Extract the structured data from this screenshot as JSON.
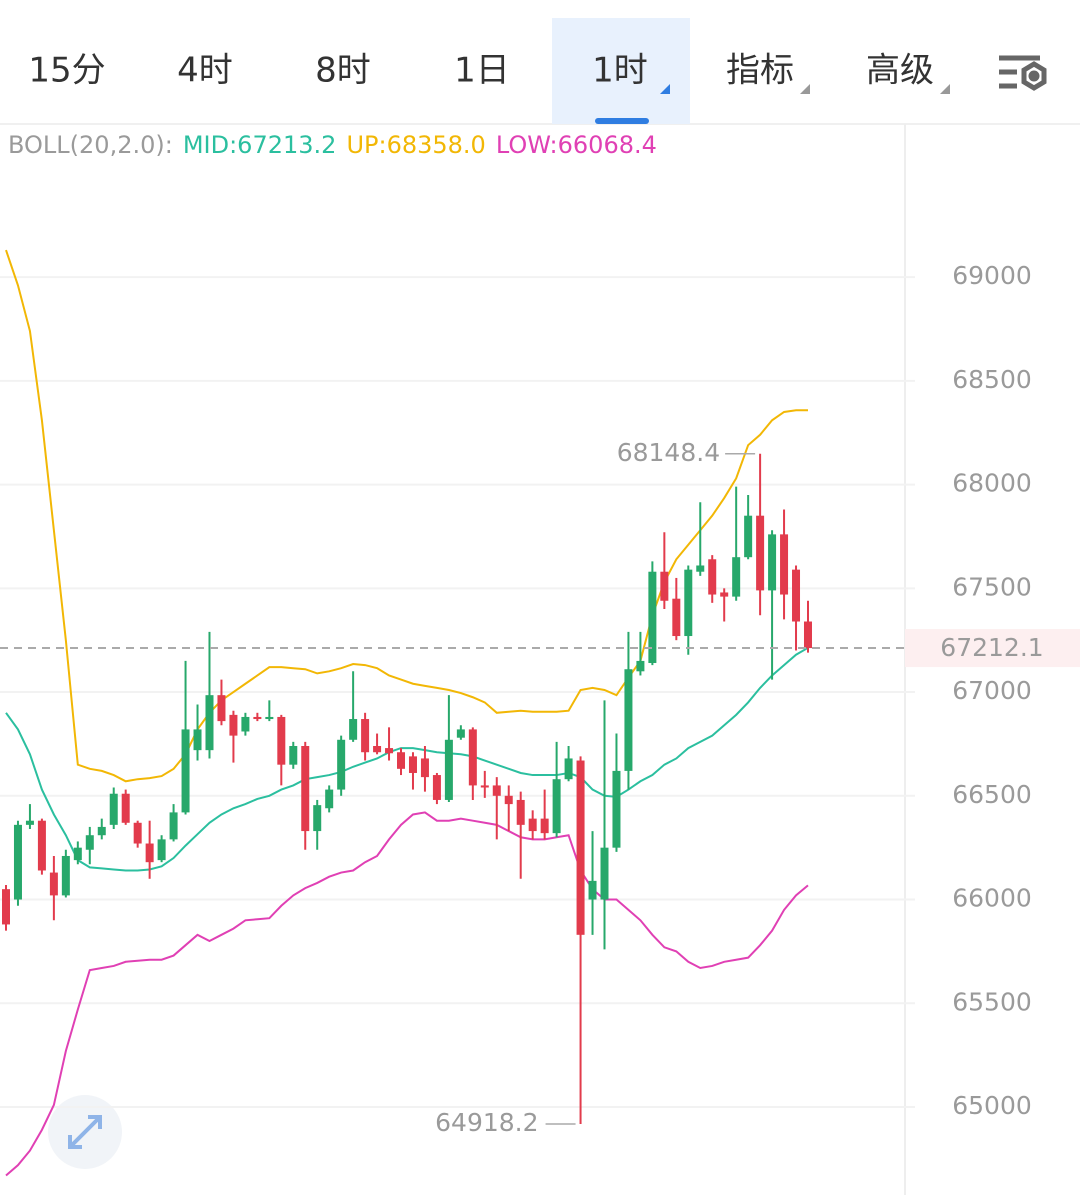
{
  "tabs": [
    "15分",
    "4时",
    "8时",
    "1日",
    "1时",
    "指标",
    "高级"
  ],
  "active_tab": 4,
  "chart_data": {
    "type": "candlestick",
    "indicator_label": "BOLL(20,2.0):",
    "up_color": "#27a86b",
    "down_color": "#e23b4c",
    "ylim": [
      64576,
      69733
    ],
    "yticks": [
      65000,
      65500,
      66000,
      66500,
      67000,
      67500,
      68000,
      68500,
      69000
    ],
    "grid": true,
    "price_line": true,
    "open": [
      66050,
      66000,
      66360,
      66380,
      66130,
      66020,
      66190,
      66240,
      66310,
      66360,
      66510,
      66370,
      66270,
      66190,
      66290,
      66420,
      66720,
      66720,
      66985,
      66890,
      66810,
      66880,
      66870,
      66880,
      66650,
      66740,
      66330,
      66440,
      66530,
      66770,
      66870,
      66740,
      66730,
      66710,
      66690,
      66680,
      66600,
      66480,
      66780,
      66820,
      66550,
      66550,
      66500,
      66480,
      66390,
      66390,
      66320,
      66580,
      66670,
      66000,
      66000,
      66250,
      66620,
      67100,
      67140,
      67580,
      67450,
      67270,
      67580,
      67640,
      67480,
      67460,
      67650,
      67850,
      67490,
      67760,
      67590,
      67340
    ],
    "high": [
      66070,
      66380,
      66460,
      66390,
      66210,
      66240,
      66280,
      66350,
      66390,
      66540,
      66530,
      66380,
      66380,
      66310,
      66460,
      67150,
      66940,
      67290,
      67060,
      66910,
      66900,
      66900,
      66960,
      66890,
      66760,
      66760,
      66480,
      66550,
      66790,
      67100,
      66900,
      66800,
      66830,
      66730,
      66710,
      66740,
      66610,
      66985,
      66840,
      66830,
      66620,
      66590,
      66550,
      66520,
      66430,
      66530,
      66760,
      66740,
      66690,
      66330,
      66960,
      66800,
      67290,
      67290,
      67630,
      67770,
      67550,
      67610,
      67915,
      67660,
      67500,
      67990,
      67950,
      68148.4,
      67780,
      67880,
      67610,
      67440
    ],
    "low": [
      65850,
      65970,
      66340,
      66120,
      65900,
      66010,
      66170,
      66170,
      66290,
      66340,
      66360,
      66250,
      66100,
      66180,
      66280,
      66410,
      66670,
      66680,
      66840,
      66660,
      66790,
      66860,
      66860,
      66550,
      66630,
      66240,
      66240,
      66420,
      66500,
      66760,
      66670,
      66700,
      66670,
      66600,
      66530,
      66520,
      66460,
      66470,
      66770,
      66480,
      66490,
      66290,
      66330,
      66100,
      66290,
      66290,
      66300,
      66570,
      64918.2,
      65830,
      65760,
      66230,
      66530,
      67080,
      67130,
      67400,
      67250,
      67180,
      67560,
      67430,
      67340,
      67440,
      67640,
      67370,
      67060,
      67350,
      67200,
      67190
    ],
    "close": [
      65880,
      66360,
      66380,
      66140,
      66020,
      66210,
      66250,
      66310,
      66350,
      66510,
      66370,
      66270,
      66180,
      66290,
      66420,
      66820,
      66820,
      66985,
      66860,
      66790,
      66880,
      66870,
      66880,
      66650,
      66740,
      66330,
      66455,
      66530,
      66770,
      66870,
      66710,
      66710,
      66705,
      66630,
      66610,
      66590,
      66480,
      66770,
      66820,
      66550,
      66540,
      66500,
      66460,
      66360,
      66330,
      66320,
      66580,
      66680,
      65830,
      66090,
      66250,
      66620,
      67110,
      67150,
      67580,
      67440,
      67270,
      67590,
      67610,
      67470,
      67460,
      67650,
      67850,
      67490,
      67760,
      67470,
      67340,
      67212.1
    ],
    "series": [
      {
        "name": "MID:67213.2",
        "color": "#2bbf9f",
        "values": [
          66900,
          66820,
          66700,
          66530,
          66410,
          66310,
          66190,
          66155,
          66150,
          66145,
          66140,
          66140,
          66145,
          66160,
          66200,
          66260,
          66315,
          66370,
          66410,
          66440,
          66460,
          66485,
          66500,
          66530,
          66550,
          66580,
          66590,
          66600,
          66615,
          66640,
          66660,
          66680,
          66710,
          66730,
          66730,
          66720,
          66710,
          66705,
          66700,
          66690,
          66670,
          66650,
          66630,
          66610,
          66600,
          66600,
          66600,
          66610,
          66590,
          66530,
          66500,
          66495,
          66530,
          66570,
          66600,
          66650,
          66680,
          66730,
          66760,
          66790,
          66840,
          66890,
          66950,
          67020,
          67080,
          67130,
          67180,
          67213.2
        ]
      },
      {
        "name": "UP:68358.0",
        "color": "#f2b705",
        "values": [
          69130,
          68960,
          68740,
          68310,
          67780,
          67250,
          66650,
          66630,
          66620,
          66600,
          66570,
          66580,
          66585,
          66595,
          66630,
          66700,
          66820,
          66900,
          66960,
          67000,
          67040,
          67080,
          67120,
          67120,
          67115,
          67110,
          67090,
          67100,
          67115,
          67135,
          67130,
          67115,
          67080,
          67060,
          67040,
          67030,
          67020,
          67010,
          66995,
          66975,
          66950,
          66900,
          66905,
          66910,
          66905,
          66905,
          66905,
          66910,
          67010,
          67020,
          67010,
          66985,
          67070,
          67150,
          67370,
          67530,
          67640,
          67710,
          67780,
          67850,
          67935,
          68030,
          68190,
          68240,
          68310,
          68350,
          68358,
          68358
        ]
      },
      {
        "name": "LOW:66068.4",
        "color": "#e040b4",
        "values": [
          64670,
          64720,
          64790,
          64890,
          65010,
          65270,
          65470,
          65660,
          65670,
          65680,
          65700,
          65705,
          65710,
          65710,
          65730,
          65780,
          65830,
          65800,
          65830,
          65860,
          65900,
          65905,
          65910,
          65970,
          66020,
          66055,
          66080,
          66110,
          66130,
          66140,
          66180,
          66210,
          66290,
          66360,
          66410,
          66420,
          66380,
          66380,
          66390,
          66380,
          66370,
          66360,
          66330,
          66300,
          66290,
          66290,
          66300,
          66310,
          66140,
          66050,
          66000,
          66000,
          65950,
          65900,
          65830,
          65770,
          65750,
          65700,
          65670,
          65680,
          65700,
          65710,
          65720,
          65780,
          65850,
          65950,
          66020,
          66068.4
        ]
      }
    ]
  }
}
